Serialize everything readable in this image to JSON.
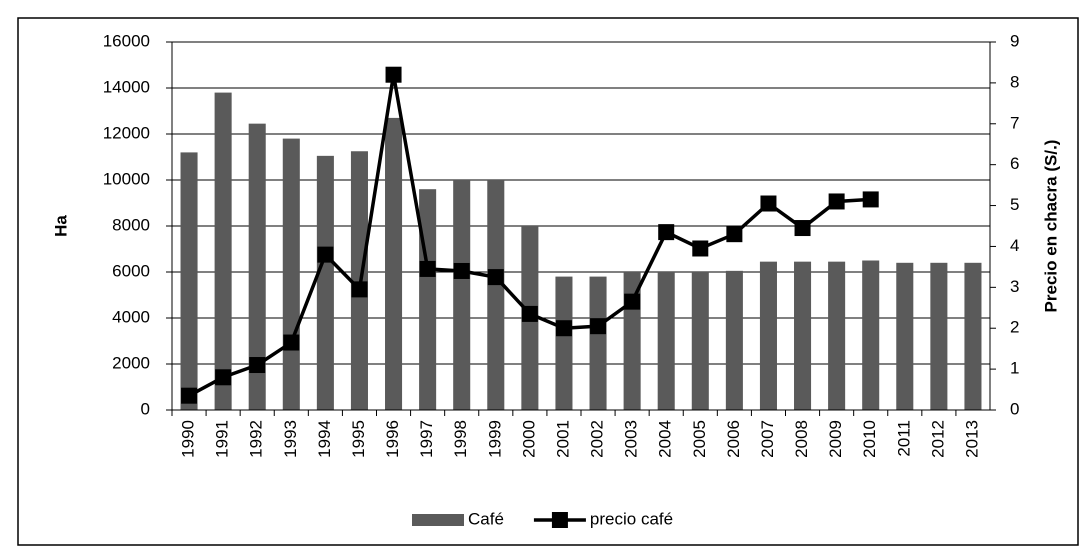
{
  "chart_data": {
    "type": "bar",
    "categories": [
      "1990",
      "1991",
      "1992",
      "1993",
      "1994",
      "1995",
      "1996",
      "1997",
      "1998",
      "1999",
      "2000",
      "2001",
      "2002",
      "2003",
      "2004",
      "2005",
      "2006",
      "2007",
      "2008",
      "2009",
      "2010",
      "2011",
      "2012",
      "2013"
    ],
    "series": [
      {
        "name": "Café",
        "type": "bar",
        "color": "#5a5a5a",
        "values": [
          11200,
          13800,
          12450,
          11800,
          11050,
          11250,
          12700,
          9600,
          10000,
          10000,
          8000,
          5800,
          5800,
          6000,
          6000,
          6000,
          6050,
          6450,
          6450,
          6450,
          6500,
          6400,
          6400,
          6400
        ]
      },
      {
        "name": "precio café",
        "type": "line",
        "axis": "y2",
        "color": "#000000",
        "values": [
          0.35,
          0.8,
          1.1,
          1.65,
          3.8,
          2.95,
          8.2,
          3.45,
          3.4,
          3.25,
          2.35,
          2.0,
          2.05,
          2.65,
          4.35,
          3.95,
          4.3,
          5.05,
          4.45,
          5.1,
          5.15,
          null,
          null,
          null
        ]
      }
    ],
    "y_label": "Ha",
    "y2_label": "Precio en chacra (S/.)",
    "ylim": [
      0,
      16000
    ],
    "yticks": [
      0,
      2000,
      4000,
      6000,
      8000,
      10000,
      12000,
      14000,
      16000
    ],
    "y2lim": [
      0,
      9
    ],
    "y2ticks": [
      0,
      1,
      2,
      3,
      4,
      5,
      6,
      7,
      8,
      9
    ],
    "grid": true,
    "legend": "bottom"
  }
}
